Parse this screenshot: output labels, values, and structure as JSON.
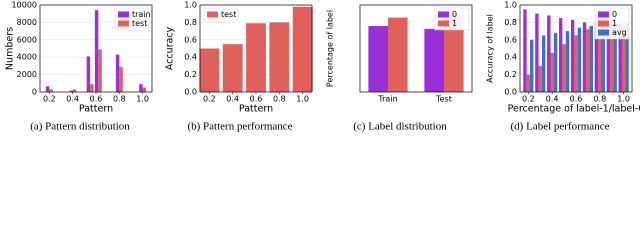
{
  "chart_data": [
    {
      "type": "bar",
      "caption": "(a) Pattern distribution",
      "xlabel": "Pattern",
      "ylabel": "Numbers",
      "x": [
        0.2,
        0.4,
        0.55,
        0.62,
        0.8,
        1.0
      ],
      "series": [
        {
          "name": "train",
          "color": "#9b30d9",
          "values": [
            650,
            150,
            4100,
            9400,
            4300,
            900
          ]
        },
        {
          "name": "test",
          "color": "#e0605e",
          "values": [
            300,
            300,
            900,
            4900,
            2900,
            500
          ]
        }
      ],
      "xlim": [
        0.12,
        1.08
      ],
      "xticks": [
        0.2,
        0.4,
        0.6,
        0.8,
        {
          "value": 1.0,
          "label": "1.0"
        }
      ],
      "ylim": [
        0,
        10000
      ],
      "yticks": [
        0,
        2000,
        4000,
        6000,
        8000,
        10000
      ],
      "legend": "upper right",
      "grid": true
    },
    {
      "type": "bar",
      "caption": "(b) Pattern performance",
      "xlabel": "Pattern",
      "ylabel": "Accuracy",
      "x": [
        0.2,
        0.4,
        0.6,
        0.8,
        1.0
      ],
      "series": [
        {
          "name": "test",
          "color": "#e0605e",
          "values": [
            0.5,
            0.55,
            0.79,
            0.8,
            0.98
          ]
        }
      ],
      "xlim": [
        0.12,
        1.08
      ],
      "xticks": [
        0.2,
        0.4,
        0.6,
        0.8,
        {
          "value": 1.0,
          "label": "1.0"
        }
      ],
      "ylim": [
        0,
        1.0
      ],
      "yticks": [
        {
          "value": 0,
          "label": "0.0"
        },
        0.2,
        0.4,
        0.6,
        0.8,
        {
          "value": 1.0,
          "label": "1.0"
        }
      ],
      "legend": "upper left",
      "grid": true
    },
    {
      "type": "bar",
      "caption": "(c) Label distribution",
      "xlabel": null,
      "ylabel": "Percentage of label",
      "categories": [
        "Train",
        "Test"
      ],
      "series": [
        {
          "name": "0",
          "color": "#9b30d9",
          "values": [
            0.47,
            0.45
          ]
        },
        {
          "name": "1",
          "color": "#e0605e",
          "values": [
            0.53,
            0.55
          ]
        }
      ],
      "ylim": [
        0,
        0.62
      ],
      "legend": "upper right",
      "grid": true
    },
    {
      "type": "bar",
      "caption": "(d) Label performance",
      "xlabel": "Percentage of label-1/label-0",
      "ylabel": "Accuracy of label",
      "x": [
        0.2,
        0.3,
        0.4,
        0.5,
        0.6,
        0.7,
        0.8,
        0.9,
        1.0
      ],
      "series": [
        {
          "name": "0",
          "color": "#9b30d9",
          "values": [
            0.95,
            0.9,
            0.88,
            0.85,
            0.83,
            0.8,
            0.8,
            0.78,
            0.78
          ]
        },
        {
          "name": "1",
          "color": "#e0605e",
          "values": [
            0.2,
            0.3,
            0.45,
            0.55,
            0.65,
            0.72,
            0.75,
            0.78,
            0.8
          ]
        },
        {
          "name": "avg",
          "color": "#3b6fd6",
          "values": [
            0.6,
            0.65,
            0.68,
            0.7,
            0.74,
            0.76,
            0.78,
            0.78,
            0.79
          ]
        }
      ],
      "xlim": [
        0.13,
        1.07
      ],
      "xticks": [
        0.2,
        0.4,
        0.6,
        0.8,
        {
          "value": 1.0,
          "label": "1.0"
        }
      ],
      "ylim": [
        0,
        1.0
      ],
      "yticks": [
        {
          "value": 0,
          "label": "0.0"
        },
        0.2,
        0.4,
        0.6,
        0.8,
        {
          "value": 1.0,
          "label": "1.0"
        }
      ],
      "legend": "upper right",
      "grid": true
    }
  ]
}
